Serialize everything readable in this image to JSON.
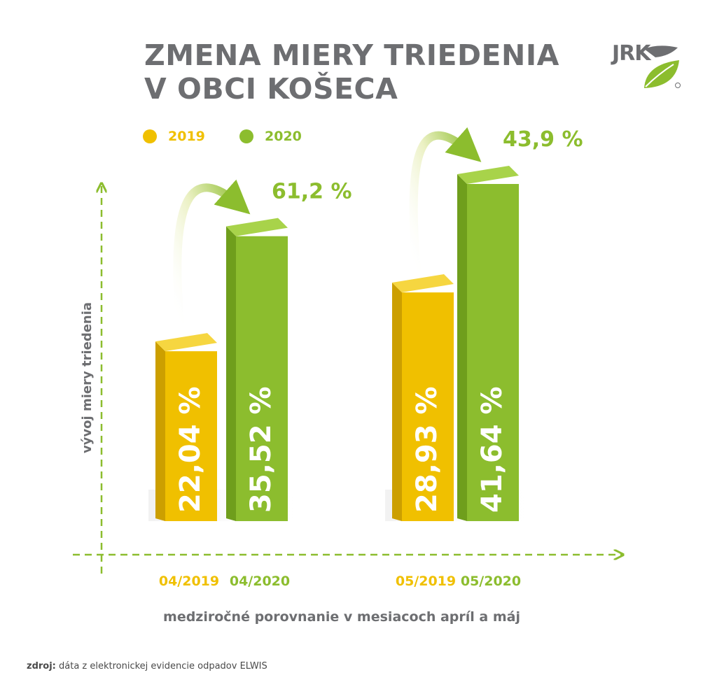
{
  "title_line1": "ZMENA MIERY TRIEDENIA",
  "title_line2": "V OBCI KOŠECA",
  "logo_text": "JRK",
  "legend": [
    {
      "label": "2019",
      "color": "#f0c000"
    },
    {
      "label": "2020",
      "color": "#8cbd2e"
    }
  ],
  "colors": {
    "yellow": "#f0c000",
    "yellow_dark": "#cc9f00",
    "yellow_top": "#f6d640",
    "green": "#8cbd2e",
    "green_dark": "#6f9e1c",
    "green_top": "#a8d34a",
    "axis": "#8cbd2e",
    "title": "#6d6e71"
  },
  "chart_data": {
    "type": "bar",
    "title": "ZMENA MIERY TRIEDENIA V OBCI KOŠECA",
    "xlabel": "medziročné porovnanie v mesiacoch apríl a máj",
    "ylabel": "vývoj miery triedenia",
    "ylim": [
      0,
      50
    ],
    "groups": [
      {
        "bars": [
          {
            "label": "04/2019",
            "value": 22.04,
            "display": "22,04 %",
            "series": "2019"
          },
          {
            "label": "04/2020",
            "value": 35.52,
            "display": "35,52 %",
            "series": "2020"
          }
        ],
        "change": "61,2 %"
      },
      {
        "bars": [
          {
            "label": "05/2019",
            "value": 28.93,
            "display": "28,93 %",
            "series": "2019"
          },
          {
            "label": "05/2020",
            "value": 41.64,
            "display": "41,64 %",
            "series": "2020"
          }
        ],
        "change": "43,9 %"
      }
    ]
  },
  "source_label": "zdroj:",
  "source_text": " dáta z elektronickej evidencie odpadov ELWIS"
}
